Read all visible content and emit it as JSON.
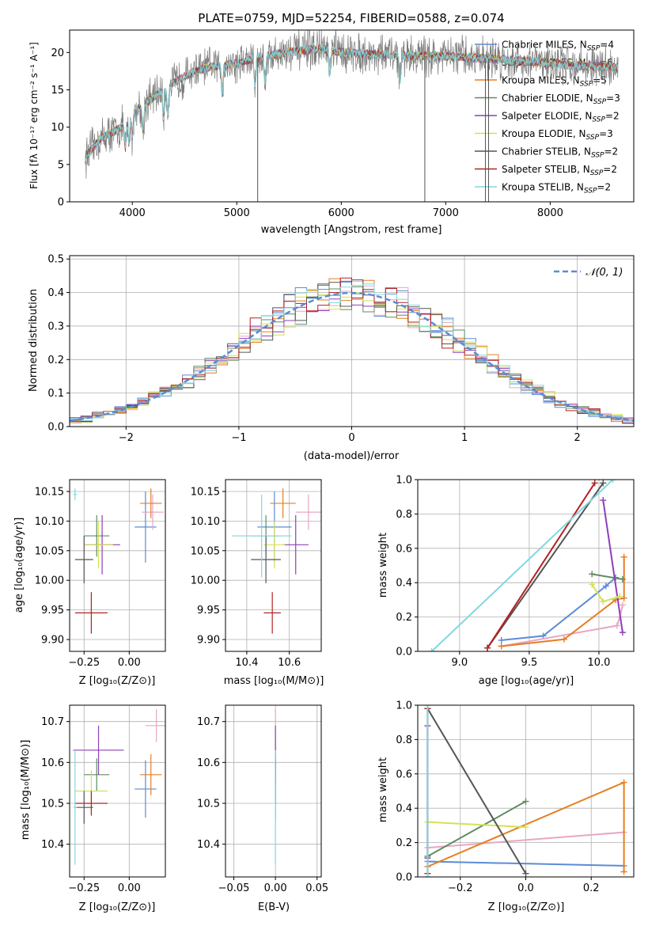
{
  "colors": {
    "chabrier_miles": "#5b8bd6",
    "salpeter_miles": "#e8a6c4",
    "kroupa_miles": "#e67e22",
    "chabrier_elodie": "#5e8c61",
    "salpeter_elodie": "#8e3fb8",
    "kroupa_elodie": "#d4e157",
    "chabrier_stelib": "#555555",
    "salpeter_stelib": "#b22222",
    "kroupa_stelib": "#80d8e0",
    "normal": "#5b8bd6",
    "grid": "#b0b0b0"
  },
  "chart_data": [
    {
      "id": "spectrum",
      "type": "line",
      "title": "PLATE=0759, MJD=52254, FIBERID=0588, z=0.074",
      "xlabel": "wavelength [Angstrom, rest frame]",
      "ylabel": "Flux [fλ 10⁻¹⁷ erg cm⁻² s⁻¹ A⁻¹]",
      "xlim": [
        3400,
        8800
      ],
      "ylim": [
        0,
        23
      ],
      "xticks": [
        4000,
        5000,
        6000,
        7000,
        8000
      ],
      "yticks": [
        0,
        5,
        10,
        15,
        20
      ],
      "grid": false,
      "legend": "right",
      "legend_entries": [
        "Chabrier MILES, N_SSP=4",
        "Salpeter MILES, N_SSP=6",
        "Kroupa MILES, N_SSP=5",
        "Chabrier ELODIE, N_SSP=3",
        "Salpeter ELODIE, N_SSP=2",
        "Kroupa ELODIE, N_SSP=3",
        "Chabrier STELIB, N_SSP=2",
        "Salpeter STELIB, N_SSP=2",
        "Kroupa STELIB, N_SSP=2"
      ],
      "data_range": [
        3550,
        8650
      ],
      "continuum": [
        [
          3550,
          6
        ],
        [
          3700,
          8.5
        ],
        [
          3900,
          10
        ],
        [
          4000,
          12
        ],
        [
          4200,
          14
        ],
        [
          4400,
          16
        ],
        [
          4600,
          17.5
        ],
        [
          4800,
          18.2
        ],
        [
          5000,
          18.5
        ],
        [
          5200,
          19.3
        ],
        [
          5400,
          19.8
        ],
        [
          5600,
          20.2
        ],
        [
          5800,
          20.5
        ],
        [
          6000,
          20
        ],
        [
          6300,
          19.8
        ],
        [
          6600,
          19.6
        ],
        [
          7000,
          19.5
        ],
        [
          7400,
          19.2
        ],
        [
          7800,
          18.8
        ],
        [
          8200,
          18.3
        ],
        [
          8650,
          18
        ]
      ],
      "spikes": [
        [
          5200,
          0
        ],
        [
          6800,
          0
        ],
        [
          7380,
          0
        ],
        [
          7410,
          0
        ]
      ]
    },
    {
      "id": "residuals",
      "type": "step",
      "xlabel": "(data-model)/error",
      "ylabel": "Normed distribution",
      "xlim": [
        -2.5,
        2.5
      ],
      "ylim": [
        0,
        0.51
      ],
      "xticks": [
        -2,
        -1,
        0,
        1,
        2
      ],
      "yticks": [
        0.0,
        0.1,
        0.2,
        0.3,
        0.4,
        0.5
      ],
      "grid": true,
      "legend": "top-right",
      "normal_label": "𝒩(0, 1)",
      "bin_width": 0.1
    },
    {
      "id": "age_vs_z",
      "type": "scatter",
      "xlabel": "Z [log₁₀(Z/Z⊙)]",
      "ylabel": "age  [log₁₀(age/yr)]",
      "xlim": [
        -0.33,
        0.2
      ],
      "ylim": [
        9.88,
        10.17
      ],
      "xticks": [
        -0.25,
        0.0
      ],
      "xtick_labels": [
        "−0.25",
        "0.00"
      ],
      "yticks": [
        9.9,
        9.95,
        10.0,
        10.05,
        10.1,
        10.15
      ],
      "grid": true,
      "points": [
        {
          "x": 0.09,
          "y": 10.09,
          "xerr": 0.06,
          "yerr": 0.06
        },
        {
          "x": 0.13,
          "y": 10.115,
          "xerr": 0.06,
          "yerr": 0.03
        },
        {
          "x": 0.12,
          "y": 10.13,
          "xerr": 0.06,
          "yerr": 0.025
        },
        {
          "x": -0.18,
          "y": 10.075,
          "xerr": 0.07,
          "yerr": 0.035
        },
        {
          "x": -0.15,
          "y": 10.06,
          "xerr": 0.1,
          "yerr": 0.05
        },
        {
          "x": -0.17,
          "y": 10.06,
          "xerr": 0.08,
          "yerr": 0.04
        },
        {
          "x": -0.25,
          "y": 10.035,
          "xerr": 0.05,
          "yerr": 0.04
        },
        {
          "x": -0.21,
          "y": 9.945,
          "xerr": 0.09,
          "yerr": 0.035
        },
        {
          "x": -0.3,
          "y": 10.145,
          "xerr": 0.01,
          "yerr": 0.01
        }
      ]
    },
    {
      "id": "age_vs_mass",
      "type": "scatter",
      "xlabel": "mass [log₁₀(M/M⊙)]",
      "xlim": [
        10.3,
        10.75
      ],
      "ylim": [
        9.88,
        10.17
      ],
      "xticks": [
        10.4,
        10.6
      ],
      "yticks": [
        9.9,
        9.95,
        10.0,
        10.05,
        10.1,
        10.15
      ],
      "grid": true,
      "points": [
        {
          "x": 10.53,
          "y": 10.09,
          "xerr": 0.08,
          "yerr": 0.06
        },
        {
          "x": 10.69,
          "y": 10.115,
          "xerr": 0.06,
          "yerr": 0.03
        },
        {
          "x": 10.57,
          "y": 10.13,
          "xerr": 0.06,
          "yerr": 0.025
        },
        {
          "x": 10.49,
          "y": 10.075,
          "xerr": 0.07,
          "yerr": 0.035
        },
        {
          "x": 10.63,
          "y": 10.06,
          "xerr": 0.06,
          "yerr": 0.05
        },
        {
          "x": 10.53,
          "y": 10.06,
          "xerr": 0.05,
          "yerr": 0.04
        },
        {
          "x": 10.49,
          "y": 10.035,
          "xerr": 0.07,
          "yerr": 0.04
        },
        {
          "x": 10.52,
          "y": 9.945,
          "xerr": 0.04,
          "yerr": 0.035
        },
        {
          "x": 10.47,
          "y": 10.075,
          "xerr": 0.14,
          "yerr": 0.07
        }
      ]
    },
    {
      "id": "weight_vs_age",
      "type": "line",
      "xlabel": "age  [log₁₀(age/yr)]",
      "ylabel": "mass weight",
      "xlim": [
        8.7,
        10.25
      ],
      "ylim": [
        0,
        1
      ],
      "xticks": [
        9.0,
        9.5,
        10.0
      ],
      "yticks": [
        0.0,
        0.2,
        0.4,
        0.6,
        0.8,
        1.0
      ],
      "grid": true,
      "series": [
        {
          "key": "chabrier_miles",
          "x": [
            9.3,
            9.6,
            10.05,
            10.12
          ],
          "y": [
            0.065,
            0.09,
            0.38,
            0.43
          ]
        },
        {
          "key": "salpeter_miles",
          "x": [
            9.3,
            10.13,
            10.15,
            10.17
          ],
          "y": [
            0.03,
            0.15,
            0.2,
            0.27
          ]
        },
        {
          "key": "kroupa_miles",
          "x": [
            9.3,
            9.75,
            10.12,
            10.18,
            10.18
          ],
          "y": [
            0.03,
            0.07,
            0.3,
            0.31,
            0.55
          ]
        },
        {
          "key": "chabrier_elodie",
          "x": [
            9.95,
            10.17
          ],
          "y": [
            0.45,
            0.42
          ]
        },
        {
          "key": "salpeter_elodie",
          "x": [
            10.03,
            10.17
          ],
          "y": [
            0.88,
            0.11
          ]
        },
        {
          "key": "kroupa_elodie",
          "x": [
            9.95,
            10.03,
            10.15
          ],
          "y": [
            0.39,
            0.29,
            0.32
          ]
        },
        {
          "key": "chabrier_stelib",
          "x": [
            9.2,
            10.03
          ],
          "y": [
            0.02,
            0.98
          ]
        },
        {
          "key": "salpeter_stelib",
          "x": [
            9.2,
            9.97
          ],
          "y": [
            0.02,
            0.98
          ]
        },
        {
          "key": "kroupa_stelib",
          "x": [
            8.8,
            10.1
          ],
          "y": [
            0.0,
            1.0
          ]
        }
      ]
    },
    {
      "id": "mass_vs_z",
      "type": "scatter",
      "xlabel": "Z [log₁₀(Z/Z⊙)]",
      "ylabel": "mass [log₁₀(M/M⊙)]",
      "xlim": [
        -0.33,
        0.2
      ],
      "ylim": [
        10.32,
        10.74
      ],
      "xticks": [
        -0.25,
        0.0
      ],
      "xtick_labels": [
        "−0.25",
        "0.00"
      ],
      "yticks": [
        10.4,
        10.5,
        10.6,
        10.7
      ],
      "grid": true,
      "points": [
        {
          "x": 0.09,
          "y": 10.535,
          "xerr": 0.06,
          "yerr": 0.07
        },
        {
          "x": 0.15,
          "y": 10.69,
          "xerr": 0.06,
          "yerr": 0.04
        },
        {
          "x": 0.12,
          "y": 10.57,
          "xerr": 0.06,
          "yerr": 0.05
        },
        {
          "x": -0.18,
          "y": 10.57,
          "xerr": 0.07,
          "yerr": 0.04
        },
        {
          "x": -0.17,
          "y": 10.63,
          "xerr": 0.14,
          "yerr": 0.06
        },
        {
          "x": -0.21,
          "y": 10.53,
          "xerr": 0.09,
          "yerr": 0.05
        },
        {
          "x": -0.25,
          "y": 10.49,
          "xerr": 0.05,
          "yerr": 0.04
        },
        {
          "x": -0.21,
          "y": 10.5,
          "xerr": 0.09,
          "yerr": 0.03
        },
        {
          "x": -0.3,
          "y": 10.49,
          "xerr": 0.01,
          "yerr": 0.14
        }
      ]
    },
    {
      "id": "mass_vs_ebv",
      "type": "scatter",
      "xlabel": "E(B-V)",
      "xlim": [
        -0.06,
        0.055
      ],
      "ylim": [
        10.32,
        10.74
      ],
      "xticks": [
        -0.05,
        0.0,
        0.05
      ],
      "xtick_labels": [
        "−0.05",
        "0.00",
        "0.05"
      ],
      "yticks": [
        10.4,
        10.5,
        10.6,
        10.7
      ],
      "grid": true,
      "points": [
        {
          "x": 0.0,
          "y": 10.53,
          "xerr": 0.0,
          "yerr": 0.07
        },
        {
          "x": 0.0,
          "y": 10.69,
          "xerr": 0.0,
          "yerr": 0.04
        },
        {
          "x": 0.0,
          "y": 10.6,
          "xerr": 0.0,
          "yerr": 0.05
        },
        {
          "x": 0.0,
          "y": 10.57,
          "xerr": 0.0,
          "yerr": 0.04
        },
        {
          "x": 0.0,
          "y": 10.63,
          "xerr": 0.0,
          "yerr": 0.06
        },
        {
          "x": 0.0,
          "y": 10.53,
          "xerr": 0.0,
          "yerr": 0.05
        },
        {
          "x": 0.0,
          "y": 10.55,
          "xerr": 0.0,
          "yerr": 0.05
        },
        {
          "x": 0.0,
          "y": 10.58,
          "xerr": 0.0,
          "yerr": 0.03
        },
        {
          "x": 0.0,
          "y": 10.49,
          "xerr": 0.0,
          "yerr": 0.14
        }
      ]
    },
    {
      "id": "weight_vs_z",
      "type": "line",
      "xlabel": "Z [log₁₀(Z/Z⊙)]",
      "ylabel": "mass weight",
      "xlim": [
        -0.33,
        0.33
      ],
      "ylim": [
        0,
        1
      ],
      "xticks": [
        -0.2,
        0.0,
        0.2
      ],
      "xtick_labels": [
        "−0.2",
        "0.0",
        "0.2"
      ],
      "yticks": [
        0.0,
        0.2,
        0.4,
        0.6,
        0.8,
        1.0
      ],
      "grid": true,
      "series": [
        {
          "key": "chabrier_miles",
          "x": [
            -0.3,
            0.3
          ],
          "y": [
            0.09,
            0.065
          ]
        },
        {
          "key": "salpeter_miles",
          "x": [
            -0.3,
            0.3
          ],
          "y": [
            0.17,
            0.26
          ]
        },
        {
          "key": "kroupa_miles",
          "x": [
            -0.3,
            0.3,
            0.3
          ],
          "y": [
            0.06,
            0.55,
            0.03
          ]
        },
        {
          "key": "chabrier_elodie",
          "x": [
            -0.3,
            0.0
          ],
          "y": [
            0.12,
            0.44
          ]
        },
        {
          "key": "salpeter_elodie",
          "x": [
            -0.3,
            -0.3
          ],
          "y": [
            0.88,
            0.11
          ]
        },
        {
          "key": "kroupa_elodie",
          "x": [
            -0.3,
            0.0
          ],
          "y": [
            0.32,
            0.29
          ]
        },
        {
          "key": "chabrier_stelib",
          "x": [
            -0.3,
            0.0
          ],
          "y": [
            0.98,
            0.02
          ]
        },
        {
          "key": "salpeter_stelib",
          "x": [
            -0.3,
            -0.3
          ],
          "y": [
            0.98,
            0.02
          ]
        },
        {
          "key": "kroupa_stelib",
          "x": [
            -0.3,
            -0.3
          ],
          "y": [
            1.0,
            0.0
          ]
        }
      ]
    }
  ]
}
